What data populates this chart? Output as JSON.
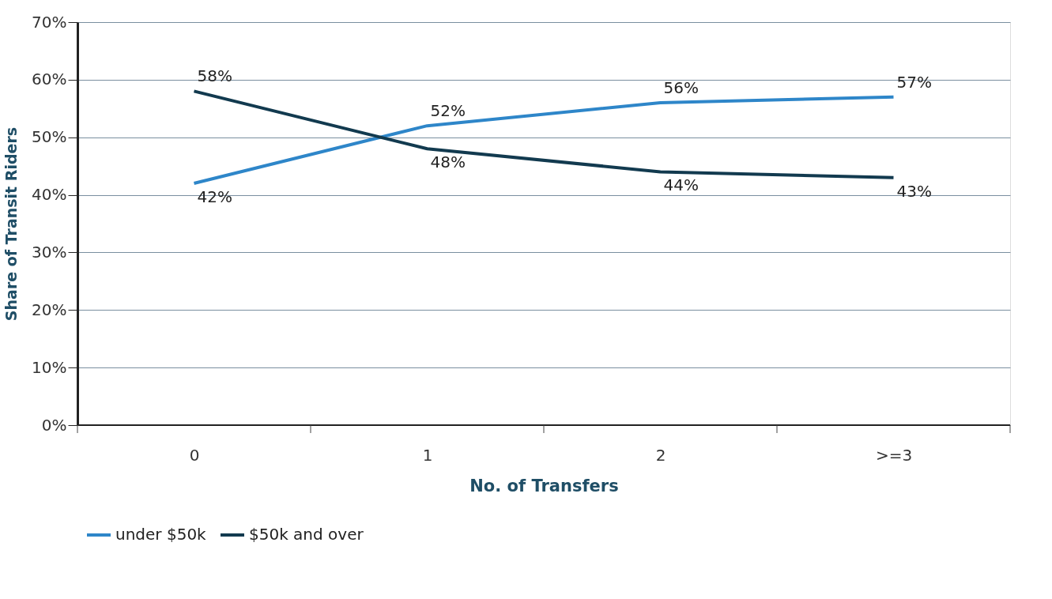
{
  "chart_data": {
    "type": "line",
    "xlabel": "No. of Transfers",
    "ylabel": "Share of Transit Riders",
    "categories": [
      "0",
      "1",
      "2",
      ">=3"
    ],
    "series": [
      {
        "name": "under $50k",
        "color": "#2e86c9",
        "values": [
          42,
          52,
          56,
          57
        ],
        "value_labels": [
          "42%",
          "52%",
          "56%",
          "57%"
        ]
      },
      {
        "name": "$50k and over",
        "color": "#123a4f",
        "values": [
          58,
          48,
          44,
          43
        ],
        "value_labels": [
          "58%",
          "48%",
          "44%",
          "43%"
        ]
      }
    ],
    "ylim": [
      0,
      70
    ],
    "yticks": [
      {
        "value": 0,
        "label": "0%"
      },
      {
        "value": 10,
        "label": "10%"
      },
      {
        "value": 20,
        "label": "20%"
      },
      {
        "value": 30,
        "label": "30%"
      },
      {
        "value": 40,
        "label": "40%"
      },
      {
        "value": 50,
        "label": "50%"
      },
      {
        "value": 60,
        "label": "60%"
      },
      {
        "value": 70,
        "label": "70%"
      }
    ],
    "grid": "y",
    "legend": "bottom",
    "marker": "none",
    "line_style": "solid"
  }
}
